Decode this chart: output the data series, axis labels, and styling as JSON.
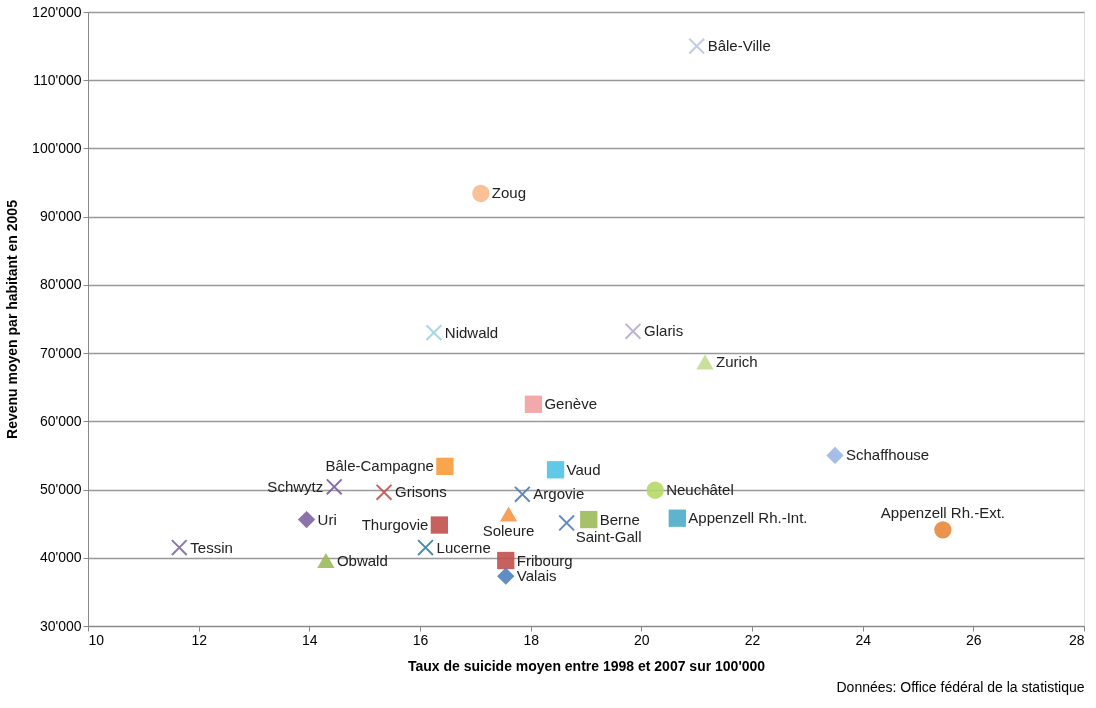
{
  "chart_data": {
    "type": "scatter",
    "xlabel": "Taux de suicide moyen entre 1998 et 2007 sur 100'000",
    "ylabel": "Revenu moyen par habitant en 2005",
    "annotations": [
      "Données: Office fédéral de la statistique"
    ],
    "xlim": [
      10,
      28
    ],
    "xticks": [
      10,
      12,
      14,
      16,
      18,
      20,
      22,
      24,
      26,
      28
    ],
    "ylim": [
      30000,
      120000
    ],
    "yticks": [
      {
        "value": 30000,
        "label": "30'000"
      },
      {
        "value": 40000,
        "label": "40'000"
      },
      {
        "value": 50000,
        "label": "50'000"
      },
      {
        "value": 60000,
        "label": "60'000"
      },
      {
        "value": 70000,
        "label": "70'000"
      },
      {
        "value": 80000,
        "label": "80'000"
      },
      {
        "value": 90000,
        "label": "90'000"
      },
      {
        "value": 100000,
        "label": "100'000"
      },
      {
        "value": 110000,
        "label": "110'000"
      },
      {
        "value": 120000,
        "label": "120'000"
      }
    ],
    "grid": "y",
    "legend": false,
    "series": [
      {
        "name": "Bâle-Ville",
        "color": "#b9c7e4",
        "marker": "cross",
        "x": [
          21.0
        ],
        "values": [
          115000
        ]
      },
      {
        "name": "Zoug",
        "color": "#f9b98c",
        "marker": "circle",
        "x": [
          17.1
        ],
        "values": [
          93400
        ]
      },
      {
        "name": "Nidwald",
        "color": "#9fd3df",
        "marker": "cross",
        "x": [
          16.25
        ],
        "values": [
          73000
        ]
      },
      {
        "name": "Glaris",
        "color": "#b3a9cb",
        "marker": "cross",
        "x": [
          19.85
        ],
        "values": [
          73200
        ]
      },
      {
        "name": "Zurich",
        "color": "#c3dc94",
        "marker": "triangle",
        "x": [
          21.15
        ],
        "values": [
          68700
        ]
      },
      {
        "name": "Genève",
        "color": "#f0a1a0",
        "marker": "square",
        "x": [
          18.05
        ],
        "values": [
          62500
        ]
      },
      {
        "name": "Schaffhouse",
        "color": "#9bb6e6",
        "marker": "diamond",
        "x": [
          23.5
        ],
        "values": [
          55000
        ]
      },
      {
        "name": "Bâle-Campagne",
        "color": "#f79b3a",
        "marker": "square",
        "x": [
          16.45
        ],
        "values": [
          53400
        ]
      },
      {
        "name": "Vaud",
        "color": "#4ec3e4",
        "marker": "square",
        "x": [
          18.45
        ],
        "values": [
          52900
        ]
      },
      {
        "name": "Argovie",
        "color": "#4a7ebb",
        "marker": "cross",
        "x": [
          17.85
        ],
        "values": [
          49300
        ]
      },
      {
        "name": "Schwytz",
        "color": "#7c5ca6",
        "marker": "cross",
        "x": [
          14.45
        ],
        "values": [
          50400
        ]
      },
      {
        "name": "Grisons",
        "color": "#c0504d",
        "marker": "cross",
        "x": [
          15.35
        ],
        "values": [
          49600
        ]
      },
      {
        "name": "Uri",
        "color": "#8064a2",
        "marker": "diamond",
        "x": [
          13.95
        ],
        "values": [
          45600
        ]
      },
      {
        "name": "Soleure",
        "color": "#f79646",
        "marker": "triangle",
        "x": [
          17.6
        ],
        "values": [
          46400
        ]
      },
      {
        "name": "Thurgovie",
        "color": "#c0504d",
        "marker": "square",
        "x": [
          16.35
        ],
        "values": [
          44800
        ]
      },
      {
        "name": "Saint-Gall",
        "color": "#4f81bd",
        "marker": "cross",
        "x": [
          18.65
        ],
        "values": [
          45100
        ]
      },
      {
        "name": "Berne",
        "color": "#9bbb59",
        "marker": "square",
        "x": [
          19.05
        ],
        "values": [
          45600
        ]
      },
      {
        "name": "Neuchâtel",
        "color": "#b5d866",
        "marker": "circle",
        "x": [
          20.25
        ],
        "values": [
          49900
        ]
      },
      {
        "name": "Appenzell Rh.-Int.",
        "color": "#4bacc6",
        "marker": "square",
        "x": [
          20.65
        ],
        "values": [
          45800
        ]
      },
      {
        "name": "Appenzell Rh.-Ext.",
        "color": "#e8883a",
        "marker": "circle",
        "x": [
          25.45
        ],
        "values": [
          44100
        ]
      },
      {
        "name": "Tessin",
        "color": "#7f6a9c",
        "marker": "cross",
        "x": [
          11.65
        ],
        "values": [
          41500
        ]
      },
      {
        "name": "Obwald",
        "color": "#9bbb59",
        "marker": "triangle",
        "x": [
          14.3
        ],
        "values": [
          39600
        ]
      },
      {
        "name": "Lucerne",
        "color": "#31859c",
        "marker": "cross",
        "x": [
          16.1
        ],
        "values": [
          41500
        ]
      },
      {
        "name": "Fribourg",
        "color": "#c0504d",
        "marker": "square",
        "x": [
          17.55
        ],
        "values": [
          39600
        ]
      },
      {
        "name": "Valais",
        "color": "#4f81bd",
        "marker": "diamond",
        "x": [
          17.55
        ],
        "values": [
          37300
        ]
      }
    ]
  }
}
